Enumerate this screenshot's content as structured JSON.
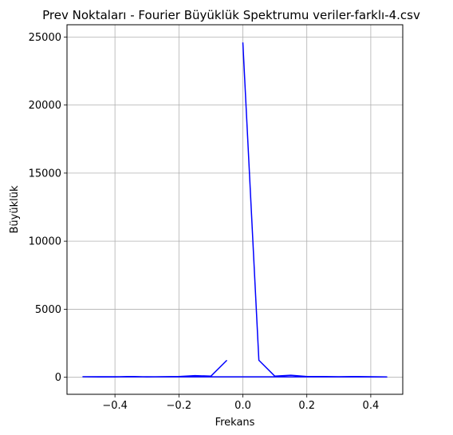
{
  "chart_data": {
    "type": "line",
    "title": "Prev Noktaları - Fourier Büyüklük Spektrumu veriler-farklı-4.csv",
    "xlabel": "Frekans",
    "ylabel": "Büyüklük",
    "xlim": [
      -0.55,
      0.5
    ],
    "ylim": [
      -1250,
      25900
    ],
    "xticks": [
      -0.4,
      -0.2,
      0.0,
      0.2,
      0.4
    ],
    "xtick_labels": [
      "−0.4",
      "−0.2",
      "0.0",
      "0.2",
      "0.4"
    ],
    "yticks": [
      0,
      5000,
      10000,
      15000,
      20000,
      25000
    ],
    "ytick_labels": [
      "0",
      "5000",
      "10000",
      "15000",
      "20000",
      "25000"
    ],
    "grid": true,
    "series": [
      {
        "color": "#0000ff",
        "x": [
          0.0,
          0.05,
          0.1,
          0.15,
          0.2,
          0.25,
          0.3,
          0.35,
          0.4,
          0.45,
          -0.5,
          -0.45,
          -0.4,
          -0.35,
          -0.3,
          -0.25,
          -0.2,
          -0.15,
          -0.1,
          -0.05
        ],
        "y": [
          24600,
          1250,
          80,
          150,
          60,
          50,
          40,
          50,
          40,
          30,
          40,
          30,
          20,
          50,
          30,
          40,
          50,
          120,
          80,
          1250
        ]
      }
    ]
  }
}
